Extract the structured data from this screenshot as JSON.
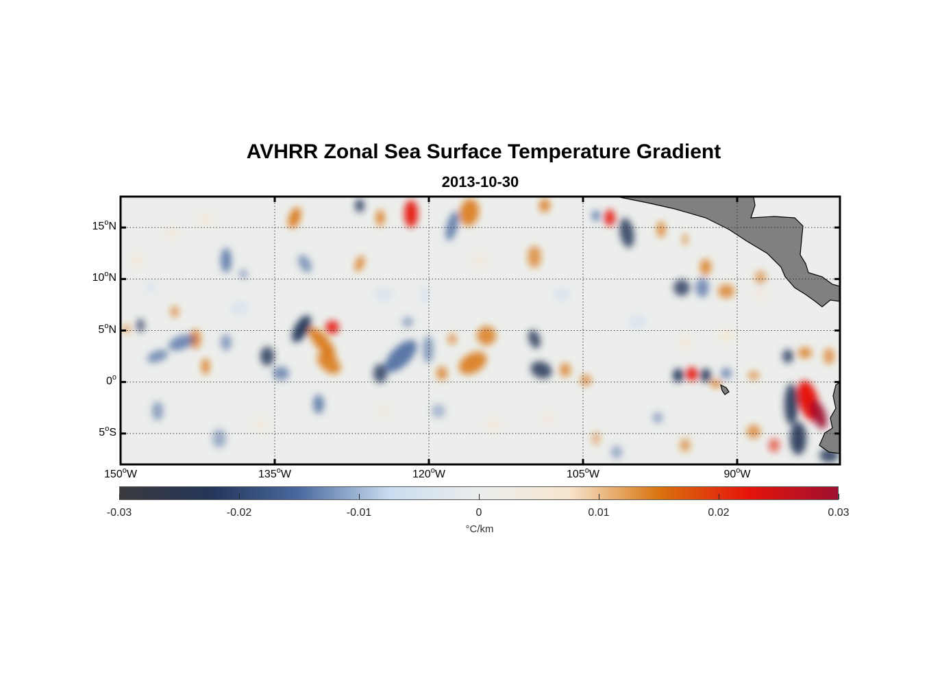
{
  "title": "AVHRR Zonal Sea Surface Temperature Gradient",
  "subtitle": "2013-10-30",
  "y_ticks": [
    {
      "deg": "15",
      "suffix": "N",
      "value": 15
    },
    {
      "deg": "10",
      "suffix": "N",
      "value": 10
    },
    {
      "deg": "5",
      "suffix": "N",
      "value": 5
    },
    {
      "deg": "0",
      "suffix": "",
      "value": 0
    },
    {
      "deg": "5",
      "suffix": "S",
      "value": -5
    }
  ],
  "x_ticks": [
    {
      "deg": "150",
      "suffix": "W",
      "value": -150
    },
    {
      "deg": "135",
      "suffix": "W",
      "value": -135
    },
    {
      "deg": "120",
      "suffix": "W",
      "value": -120
    },
    {
      "deg": "105",
      "suffix": "W",
      "value": -105
    },
    {
      "deg": "90",
      "suffix": "W",
      "value": -90
    }
  ],
  "extent": {
    "lon": [
      -150,
      -80
    ],
    "lat": [
      -8,
      18
    ]
  },
  "colorbar": {
    "ticks": [
      "-0.03",
      "-0.02",
      "-0.01",
      "0",
      "0.01",
      "0.02",
      "0.03"
    ],
    "range": [
      -0.03,
      0.03
    ],
    "unit": "°C/km",
    "colors": [
      "#3a3a3e",
      "#233558",
      "#4a6aa0",
      "#c9dcef",
      "#eceeee",
      "#f7e6cf",
      "#d9740e",
      "#e5140a",
      "#9e1030"
    ]
  },
  "land_color": "#808080",
  "frame_color": "#000000"
}
